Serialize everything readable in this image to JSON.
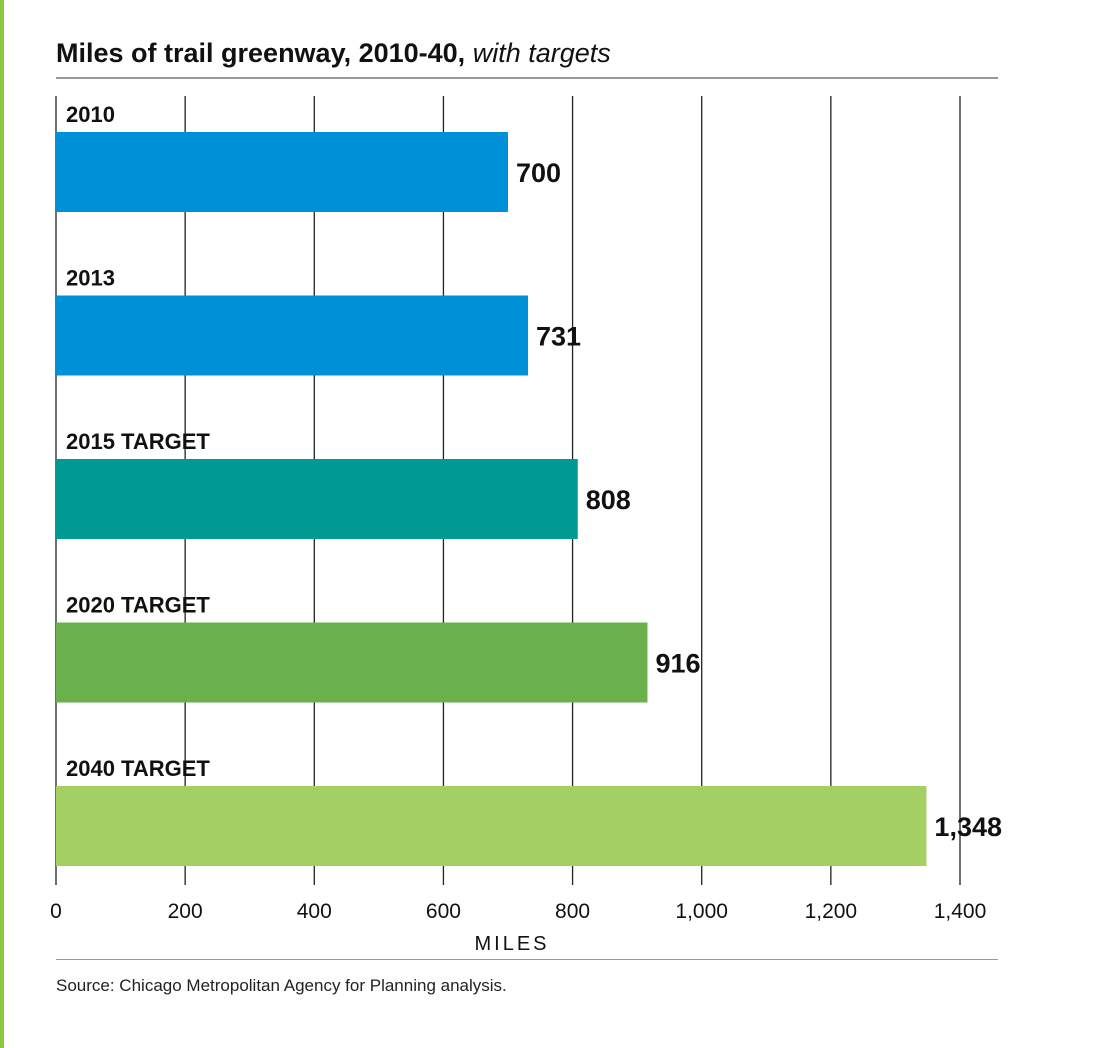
{
  "chart_title": "Miles of trail greenway, 2010-40,",
  "chart_subtitle": "with targets",
  "source": "Source: Chicago Metropolitan Agency for Planning analysis.",
  "accent_color": "#8dc63f",
  "chart_data": {
    "type": "bar",
    "orientation": "horizontal",
    "title": "Miles of trail greenway, 2010-40,",
    "subtitle": "with targets",
    "xlabel": "MILES",
    "ylabel": "",
    "xlim": [
      0,
      1400
    ],
    "xticks": [
      0,
      200,
      400,
      600,
      800,
      1000,
      1200,
      1400
    ],
    "xtick_labels": [
      "0",
      "200",
      "400",
      "600",
      "800",
      "1,000",
      "1,200",
      "1,400"
    ],
    "grid": "vertical",
    "categories": [
      "2010",
      "2013",
      "2015 TARGET",
      "2020 TARGET",
      "2040 TARGET"
    ],
    "values": [
      700,
      731,
      808,
      916,
      1348
    ],
    "value_labels": [
      "700",
      "731",
      "808",
      "916",
      "1,348"
    ],
    "colors": [
      "#0090d7",
      "#0090d7",
      "#009a93",
      "#6ab04c",
      "#a4cf63"
    ]
  }
}
